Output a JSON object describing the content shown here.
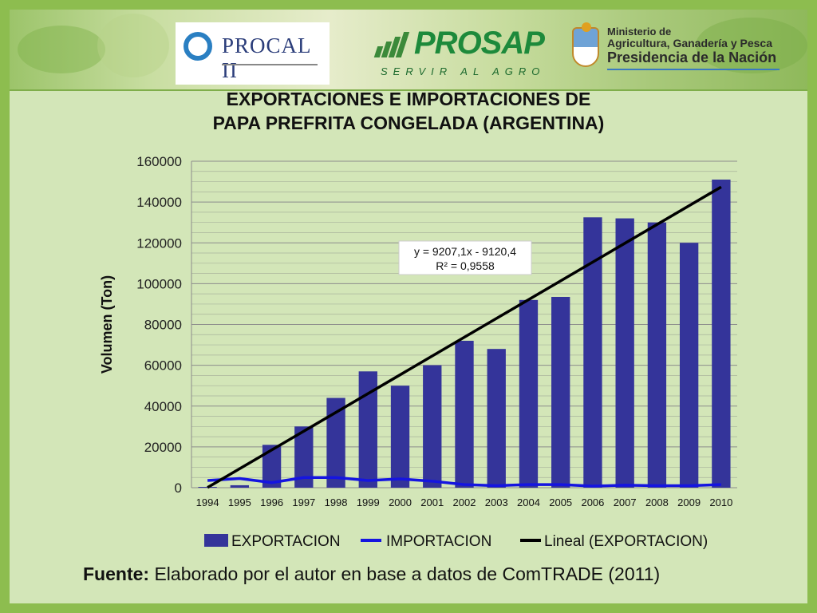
{
  "logos": {
    "procal": "PROCAL II",
    "prosap": "PROSAP",
    "prosap_tagline": "SERVIR AL AGRO",
    "ministry_line1": "Ministerio de",
    "ministry_line2": "Agricultura, Ganadería y Pesca",
    "ministry_line3": "Presidencia de la Nación"
  },
  "title_line1": "EXPORTACIONES E IMPORTACIONES DE",
  "title_line2": "PAPA PREFRITA CONGELADA (ARGENTINA)",
  "footnote": {
    "label": "Fuente:",
    "text": " Elaborado por el autor en base a datos de ComTRADE (2011)"
  },
  "colors": {
    "bar": "#34349a",
    "import_line": "#1515e0",
    "trend_line": "#000000"
  },
  "chart_data": {
    "type": "bar",
    "categories": [
      "1994",
      "1995",
      "1996",
      "1997",
      "1998",
      "1999",
      "2000",
      "2001",
      "2002",
      "2003",
      "2004",
      "2005",
      "2006",
      "2007",
      "2008",
      "2009",
      "2010"
    ],
    "series": [
      {
        "name": "EXPORTACION",
        "type": "bar",
        "values": [
          400,
          1200,
          21000,
          30000,
          44000,
          57000,
          50000,
          60000,
          72000,
          68000,
          92000,
          93500,
          132500,
          132000,
          130000,
          120000,
          151000
        ]
      },
      {
        "name": "IMPORTACION",
        "type": "line",
        "values": [
          3500,
          4500,
          2500,
          5000,
          5000,
          3500,
          4300,
          3200,
          1500,
          1000,
          1500,
          1500,
          800,
          1200,
          1000,
          1000,
          1500
        ]
      },
      {
        "name": "Lineal (EXPORTACION)",
        "type": "trendline",
        "slope": 9207.1,
        "intercept": -9120.4
      }
    ],
    "annotation_line1": "y = 9207,1x - 9120,4",
    "annotation_line2": "R² = 0,9558",
    "ylabel": "Volumen (Ton)",
    "xlabel": "",
    "ylim": [
      0,
      160000
    ],
    "yticks": [
      0,
      20000,
      40000,
      60000,
      80000,
      100000,
      120000,
      140000,
      160000
    ],
    "grid": true,
    "legend_position": "bottom"
  }
}
